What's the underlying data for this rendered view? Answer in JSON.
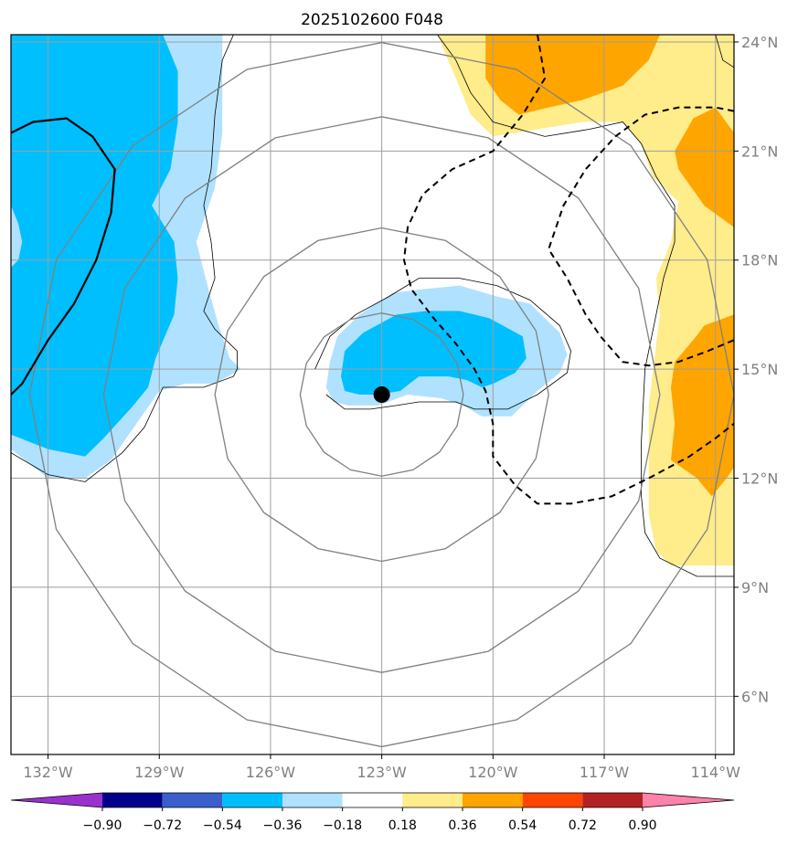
{
  "chart_data": {
    "type": "heatmap",
    "title": "2025102600 F048",
    "projection": "map",
    "lon_range": [
      -133,
      -113.5
    ],
    "lat_range": [
      4.4,
      24.2
    ],
    "x_ticks": [
      {
        "value": -132,
        "label": "132°W"
      },
      {
        "value": -129,
        "label": "129°W"
      },
      {
        "value": -126,
        "label": "126°W"
      },
      {
        "value": -123,
        "label": "123°W"
      },
      {
        "value": -120,
        "label": "120°W"
      },
      {
        "value": -117,
        "label": "117°W"
      },
      {
        "value": -114,
        "label": "114°W"
      }
    ],
    "y_ticks": [
      {
        "value": 24,
        "label": "24°N"
      },
      {
        "value": 21,
        "label": "21°N"
      },
      {
        "value": 18,
        "label": "18°N"
      },
      {
        "value": 15,
        "label": "15°N"
      },
      {
        "value": 12,
        "label": "12°N"
      },
      {
        "value": 9,
        "label": "9°N"
      },
      {
        "value": 6,
        "label": "6°N"
      }
    ],
    "grid": true,
    "center_marker": {
      "lon": -123,
      "lat": 14.3
    },
    "range_rings_deg": [
      2.2,
      4.5,
      7.5,
      9.5
    ],
    "colorbar": {
      "orientation": "horizontal",
      "extend": "both",
      "boundaries": [
        -0.9,
        -0.72,
        -0.54,
        -0.36,
        -0.18,
        0.18,
        0.36,
        0.54,
        0.72,
        0.9
      ],
      "tick_labels": [
        "−0.90",
        "−0.72",
        "−0.54",
        "−0.36",
        "−0.18",
        "0.18",
        "0.36",
        "0.54",
        "0.72",
        "0.90"
      ],
      "colors": [
        "#9932cc",
        "#00008b",
        "#3a5fcd",
        "#00bfff",
        "#b0e2ff",
        "#ffffff",
        "#ffec8b",
        "#ffa500",
        "#ff4500",
        "#b22222",
        "#ff82ab"
      ]
    },
    "filled_regions": [
      {
        "name": "west-light",
        "level": "-0.36 to -0.18",
        "color": "#b0e2ff",
        "points": [
          [
            -133,
            24.2
          ],
          [
            -127.3,
            24.2
          ],
          [
            -127.3,
            21.5
          ],
          [
            -127.5,
            20
          ],
          [
            -128,
            18.5
          ],
          [
            -127.7,
            17.3
          ],
          [
            -127.4,
            16.2
          ],
          [
            -127.1,
            15.3
          ],
          [
            -126.8,
            15
          ],
          [
            -127.5,
            14.6
          ],
          [
            -128.3,
            14.6
          ],
          [
            -129,
            14.4
          ],
          [
            -130.3,
            12.5
          ],
          [
            -131,
            12
          ],
          [
            -132,
            12
          ],
          [
            -133,
            12.8
          ]
        ]
      },
      {
        "name": "west-mid",
        "level": "-0.54 to -0.36",
        "color": "#00bfff",
        "points": [
          [
            -133,
            24.2
          ],
          [
            -128.9,
            24.2
          ],
          [
            -128.5,
            23.2
          ],
          [
            -128.5,
            21.8
          ],
          [
            -128.7,
            20.5
          ],
          [
            -129.2,
            19.5
          ],
          [
            -128.6,
            18.5
          ],
          [
            -128.5,
            17.5
          ],
          [
            -128.6,
            16.5
          ],
          [
            -129.1,
            15.3
          ],
          [
            -129.3,
            14.5
          ],
          [
            -129.7,
            14
          ],
          [
            -130.5,
            13.1
          ],
          [
            -131,
            12.6
          ],
          [
            -132,
            12.8
          ],
          [
            -133,
            13.2
          ]
        ]
      },
      {
        "name": "west-light-strip",
        "level": "-0.36 to -0.18",
        "color": "#b0e2ff",
        "points": [
          [
            -133,
            19.5
          ],
          [
            -132.8,
            19
          ],
          [
            -132.7,
            18.5
          ],
          [
            -132.8,
            18
          ],
          [
            -133,
            17.8
          ]
        ]
      },
      {
        "name": "center-light",
        "level": "-0.36 to -0.18",
        "color": "#b0e2ff",
        "points": [
          [
            -124.5,
            14.5
          ],
          [
            -124.4,
            15.2
          ],
          [
            -124.2,
            15.9
          ],
          [
            -123.6,
            16.5
          ],
          [
            -122.7,
            17.1
          ],
          [
            -121.9,
            17.2
          ],
          [
            -120.9,
            17.3
          ],
          [
            -119.9,
            17
          ],
          [
            -119,
            16.8
          ],
          [
            -118.2,
            16
          ],
          [
            -118,
            15.4
          ],
          [
            -118.2,
            14.9
          ],
          [
            -118.8,
            14.4
          ],
          [
            -119.5,
            13.7
          ],
          [
            -120.3,
            13.7
          ],
          [
            -120.8,
            14
          ],
          [
            -121.4,
            14.2
          ],
          [
            -122.3,
            14.3
          ],
          [
            -123.1,
            14
          ],
          [
            -123.9,
            14
          ],
          [
            -124.3,
            14.1
          ]
        ]
      },
      {
        "name": "center-mid",
        "level": "-0.54 to -0.36",
        "color": "#00bfff",
        "points": [
          [
            -124.1,
            14.8
          ],
          [
            -124,
            15.5
          ],
          [
            -123.5,
            16
          ],
          [
            -122.6,
            16.5
          ],
          [
            -121.8,
            16.6
          ],
          [
            -120.9,
            16.6
          ],
          [
            -120.1,
            16.4
          ],
          [
            -119.2,
            15.9
          ],
          [
            -119.1,
            15.3
          ],
          [
            -119.4,
            14.9
          ],
          [
            -120,
            14.6
          ],
          [
            -120.3,
            14.5
          ],
          [
            -120.7,
            14.7
          ],
          [
            -121.2,
            14.8
          ],
          [
            -122,
            14.8
          ],
          [
            -122.5,
            14.4
          ],
          [
            -123.1,
            14.3
          ],
          [
            -123.6,
            14.3
          ],
          [
            -124,
            14.4
          ]
        ]
      },
      {
        "name": "ne-yellow",
        "level": "0.18 to 0.36",
        "color": "#ffec8b",
        "points": [
          [
            -121.5,
            24.2
          ],
          [
            -113.5,
            24.2
          ],
          [
            -113.5,
            9.6
          ],
          [
            -115.2,
            9.6
          ],
          [
            -115.6,
            10
          ],
          [
            -115.8,
            11
          ],
          [
            -115.8,
            14
          ],
          [
            -115.5,
            16.5
          ],
          [
            -115.6,
            17.5
          ],
          [
            -115.2,
            18.5
          ],
          [
            -115,
            19.6
          ],
          [
            -115.7,
            20.3
          ],
          [
            -116,
            21.2
          ],
          [
            -116.5,
            21.8
          ],
          [
            -117.6,
            21.8
          ],
          [
            -118.8,
            21.6
          ],
          [
            -120,
            21.4
          ],
          [
            -120.6,
            22
          ],
          [
            -121,
            23
          ]
        ]
      },
      {
        "name": "ne-orange-top",
        "level": "0.36 to 0.54",
        "color": "#ffa500",
        "points": [
          [
            -120.2,
            24.2
          ],
          [
            -115.5,
            24.2
          ],
          [
            -115.8,
            23.5
          ],
          [
            -116.5,
            22.8
          ],
          [
            -117.6,
            22.4
          ],
          [
            -118.5,
            22.2
          ],
          [
            -119.3,
            22
          ],
          [
            -119.8,
            22.4
          ],
          [
            -120.2,
            23
          ]
        ]
      },
      {
        "name": "ne-orange-right",
        "level": "0.36 to 0.54",
        "color": "#ffa500",
        "points": [
          [
            -113.5,
            21.5
          ],
          [
            -113.5,
            18.9
          ],
          [
            -114.3,
            19.5
          ],
          [
            -115,
            20.5
          ],
          [
            -115.1,
            21
          ],
          [
            -114.6,
            21.9
          ],
          [
            -114,
            22.2
          ]
        ]
      },
      {
        "name": "e-orange",
        "level": "0.36 to 0.54",
        "color": "#ffa500",
        "points": [
          [
            -113.5,
            16.5
          ],
          [
            -114.3,
            16.2
          ],
          [
            -114.6,
            15.8
          ],
          [
            -115.1,
            15.2
          ],
          [
            -115.2,
            14.5
          ],
          [
            -115.1,
            13.5
          ],
          [
            -115.2,
            12.5
          ],
          [
            -114.5,
            12
          ],
          [
            -114.1,
            11.5
          ],
          [
            -113.7,
            12
          ],
          [
            -113.5,
            12.3
          ]
        ]
      }
    ],
    "lines": [
      {
        "name": "coast-west-1",
        "style": "thin",
        "points": [
          [
            -127,
            24.2
          ],
          [
            -127.3,
            23.5
          ],
          [
            -127.5,
            22
          ],
          [
            -127.6,
            20.5
          ],
          [
            -127.8,
            19.5
          ],
          [
            -127.6,
            18.5
          ],
          [
            -127.5,
            17.5
          ],
          [
            -127.8,
            16.6
          ],
          [
            -127.5,
            16.1
          ],
          [
            -126.9,
            15.5
          ],
          [
            -126.9,
            15
          ],
          [
            -127,
            14.8
          ],
          [
            -127.8,
            14.5
          ],
          [
            -128.9,
            14.5
          ],
          [
            -129.4,
            13.4
          ],
          [
            -130,
            12.7
          ],
          [
            -131,
            11.9
          ],
          [
            -132,
            12.1
          ],
          [
            -133,
            12.7
          ]
        ]
      },
      {
        "name": "coast-center",
        "style": "thin",
        "points": [
          [
            -124.8,
            15
          ],
          [
            -124.4,
            15.9
          ],
          [
            -123.7,
            16.5
          ],
          [
            -122.8,
            17
          ],
          [
            -122,
            17.5
          ],
          [
            -120.9,
            17.5
          ],
          [
            -119.9,
            17.3
          ],
          [
            -119,
            16.9
          ],
          [
            -118.2,
            16.2
          ],
          [
            -117.9,
            15.5
          ],
          [
            -118,
            14.9
          ],
          [
            -118.8,
            14.3
          ],
          [
            -119.6,
            13.9
          ],
          [
            -120.5,
            13.9
          ],
          [
            -121,
            14.1
          ],
          [
            -122,
            14.1
          ],
          [
            -122.6,
            14
          ],
          [
            -123.3,
            13.9
          ],
          [
            -124,
            13.9
          ],
          [
            -124.5,
            14.3
          ]
        ]
      },
      {
        "name": "coast-northeast",
        "style": "thin",
        "points": [
          [
            -121.5,
            24.2
          ],
          [
            -121,
            23.5
          ],
          [
            -120.6,
            22.6
          ],
          [
            -120,
            21.8
          ],
          [
            -118.6,
            21.4
          ],
          [
            -117.4,
            21.6
          ],
          [
            -116.5,
            21.8
          ],
          [
            -116,
            21.2
          ],
          [
            -115.6,
            20.3
          ],
          [
            -115.1,
            19.5
          ],
          [
            -115.1,
            18.5
          ],
          [
            -115.4,
            17.5
          ],
          [
            -115.6,
            16.5
          ],
          [
            -115.9,
            15
          ],
          [
            -116,
            13
          ],
          [
            -116,
            11.5
          ],
          [
            -115.9,
            10.5
          ],
          [
            -115.5,
            9.8
          ],
          [
            -114.5,
            9.3
          ],
          [
            -113.5,
            9.3
          ]
        ]
      },
      {
        "name": "coast-far-ne",
        "style": "thin",
        "points": [
          [
            -114,
            24.2
          ],
          [
            -113.8,
            23.5
          ],
          [
            -113.5,
            23.3
          ]
        ]
      },
      {
        "name": "contour-solid-west",
        "style": "solid-thick",
        "points": [
          [
            -133,
            21.5
          ],
          [
            -132.4,
            21.8
          ],
          [
            -131.5,
            21.9
          ],
          [
            -130.8,
            21.4
          ],
          [
            -130.2,
            20.5
          ],
          [
            -130.3,
            19.3
          ],
          [
            -130.7,
            18
          ],
          [
            -131.3,
            16.8
          ],
          [
            -132,
            15.8
          ],
          [
            -132.7,
            14.6
          ],
          [
            -133,
            14.3
          ]
        ]
      },
      {
        "name": "contour-dashed-1",
        "style": "dashed",
        "points": [
          [
            -118.8,
            24.2
          ],
          [
            -118.6,
            23
          ],
          [
            -119.2,
            22
          ],
          [
            -120,
            21
          ],
          [
            -121.1,
            20.5
          ],
          [
            -121.9,
            19.8
          ],
          [
            -122.3,
            18.9
          ],
          [
            -122.4,
            18
          ],
          [
            -122.2,
            17.2
          ],
          [
            -121.6,
            16.4
          ],
          [
            -121,
            15.7
          ],
          [
            -120.5,
            15
          ],
          [
            -120.2,
            14.4
          ],
          [
            -120,
            13.5
          ],
          [
            -120,
            12.6
          ],
          [
            -119.4,
            11.8
          ],
          [
            -118.8,
            11.3
          ],
          [
            -117.9,
            11.3
          ],
          [
            -116.8,
            11.5
          ],
          [
            -115.8,
            12
          ],
          [
            -114.7,
            12.6
          ],
          [
            -114,
            13.1
          ],
          [
            -113.5,
            13.5
          ]
        ]
      },
      {
        "name": "contour-dashed-2",
        "style": "dashed",
        "points": [
          [
            -113.5,
            22.1
          ],
          [
            -114,
            22.2
          ],
          [
            -115,
            22.2
          ],
          [
            -115.9,
            22
          ],
          [
            -116.7,
            21.4
          ],
          [
            -117.5,
            20.5
          ],
          [
            -118.1,
            19.5
          ],
          [
            -118.5,
            18.3
          ],
          [
            -118,
            17.5
          ],
          [
            -117.5,
            16.5
          ],
          [
            -117.1,
            15.9
          ],
          [
            -116.5,
            15.2
          ],
          [
            -115.8,
            15.1
          ],
          [
            -115,
            15.2
          ],
          [
            -114.2,
            15.5
          ],
          [
            -113.5,
            15.8
          ]
        ]
      }
    ]
  }
}
